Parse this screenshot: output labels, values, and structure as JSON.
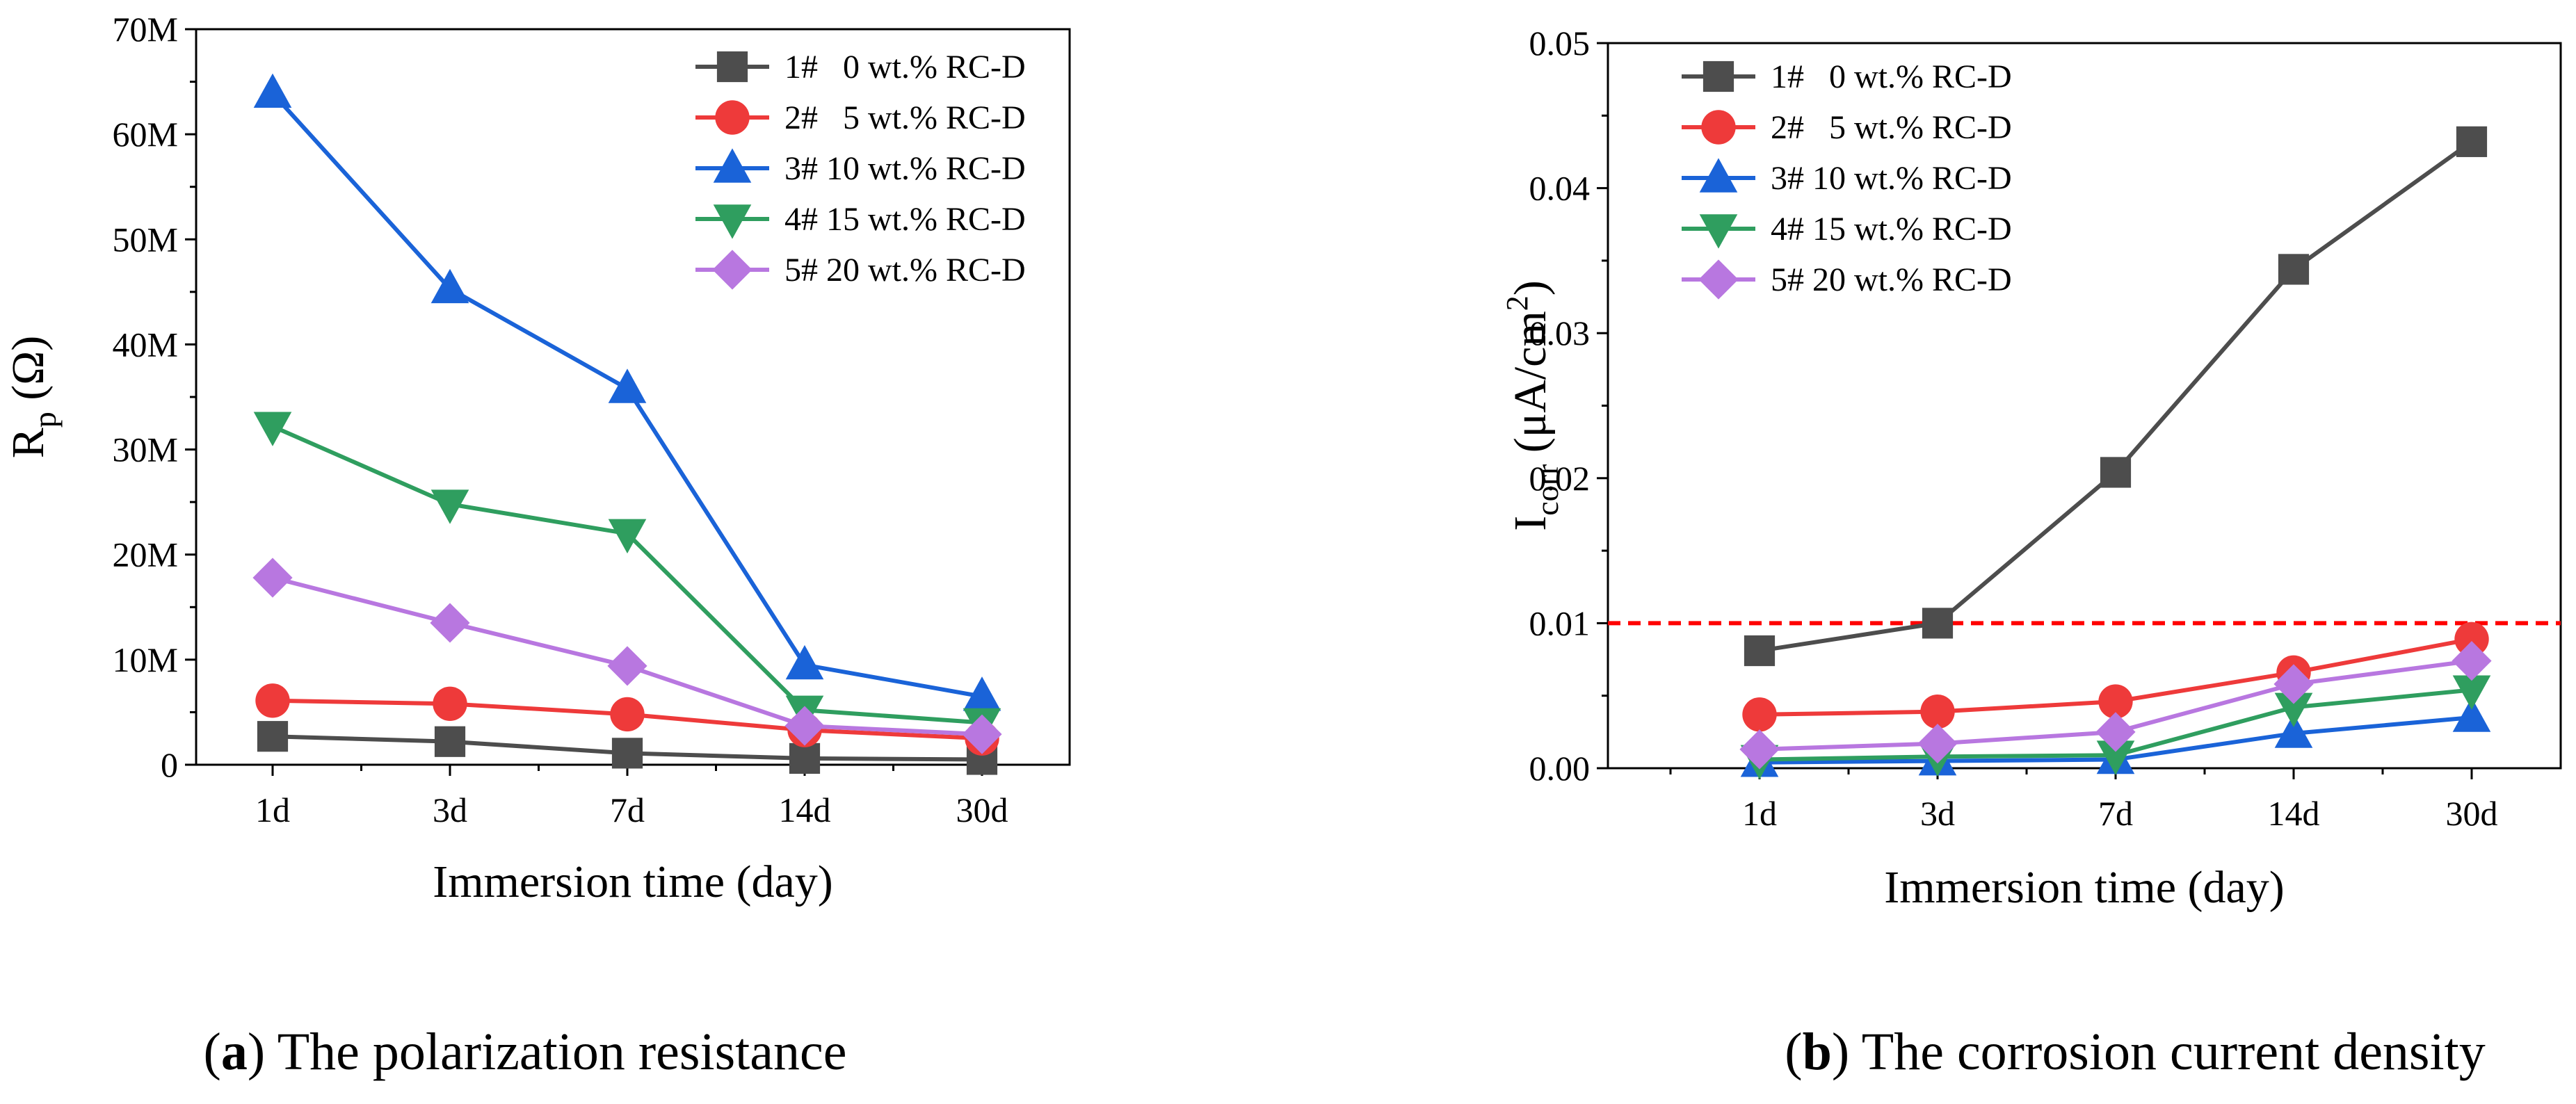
{
  "chart_data": [
    {
      "type": "line",
      "panel_label": "a",
      "caption": "The polarization resistance",
      "categories": [
        "1d",
        "3d",
        "7d",
        "14d",
        "30d"
      ],
      "xlabel": "Immersion time (day)",
      "ylabel_main": "R",
      "ylabel_sub": "p",
      "ylabel_unit": " (Ω)",
      "ylim": [
        0,
        70000000
      ],
      "ytick_values": [
        0,
        10000000,
        20000000,
        30000000,
        40000000,
        50000000,
        60000000,
        70000000
      ],
      "ytick_labels": [
        "0",
        "10M",
        "20M",
        "30M",
        "40M",
        "50M",
        "60M",
        "70M"
      ],
      "legend_position": "top-right",
      "series": [
        {
          "name": "1#   0 wt.% RC-D",
          "color": "#4d4d4d",
          "marker": "square",
          "values": [
            2700000,
            2200000,
            1100000,
            600000,
            500000
          ]
        },
        {
          "name": "2#   5 wt.% RC-D",
          "color": "#ee3a3a",
          "marker": "circle",
          "values": [
            6100000,
            5800000,
            4800000,
            3300000,
            2500000
          ]
        },
        {
          "name": "3# 10 wt.% RC-D",
          "color": "#1a63d8",
          "marker": "triangle-up",
          "values": [
            63900000,
            45300000,
            35800000,
            9500000,
            6500000
          ]
        },
        {
          "name": "4# 15 wt.% RC-D",
          "color": "#2f9e5f",
          "marker": "triangle-down",
          "values": [
            32200000,
            24800000,
            22000000,
            5200000,
            4000000
          ]
        },
        {
          "name": "5# 20 wt.% RC-D",
          "color": "#b877e0",
          "marker": "diamond",
          "values": [
            17800000,
            13500000,
            9400000,
            3700000,
            2900000
          ]
        }
      ]
    },
    {
      "type": "line",
      "panel_label": "b",
      "caption": "The corrosion current density",
      "categories": [
        "1d",
        "3d",
        "7d",
        "14d",
        "30d"
      ],
      "xlabel": "Immersion time (day)",
      "ylabel_main": "I",
      "ylabel_sub": "corr",
      "ylabel_unit": " (μA/cm",
      "ylabel_sup": "2",
      "ylabel_close": ")",
      "ylim": [
        0,
        0.05
      ],
      "ytick_values": [
        0,
        0.01,
        0.02,
        0.03,
        0.04,
        0.05
      ],
      "ytick_labels": [
        "0.00",
        "0.01",
        "0.02",
        "0.03",
        "0.04",
        "0.05"
      ],
      "legend_position": "top-left",
      "reference_line": {
        "value": 0.01,
        "color": "#ff0000",
        "style": "dashed"
      },
      "series": [
        {
          "name": "1#   0 wt.% RC-D",
          "color": "#4d4d4d",
          "marker": "square",
          "values": [
            0.0081,
            0.01,
            0.0204,
            0.0344,
            0.0432
          ]
        },
        {
          "name": "2#   5 wt.% RC-D",
          "color": "#ee3a3a",
          "marker": "circle",
          "values": [
            0.0037,
            0.0039,
            0.0046,
            0.0066,
            0.0089
          ]
        },
        {
          "name": "3# 10 wt.% RC-D",
          "color": "#1a63d8",
          "marker": "triangle-up",
          "values": [
            0.0004,
            0.0005,
            0.0006,
            0.0024,
            0.0035
          ]
        },
        {
          "name": "4# 15 wt.% RC-D",
          "color": "#2f9e5f",
          "marker": "triangle-down",
          "values": [
            0.0006,
            0.0008,
            0.0009,
            0.0042,
            0.0054
          ]
        },
        {
          "name": "5# 20 wt.% RC-D",
          "color": "#b877e0",
          "marker": "diamond",
          "values": [
            0.0013,
            0.0017,
            0.0025,
            0.0058,
            0.0074
          ]
        }
      ]
    }
  ]
}
